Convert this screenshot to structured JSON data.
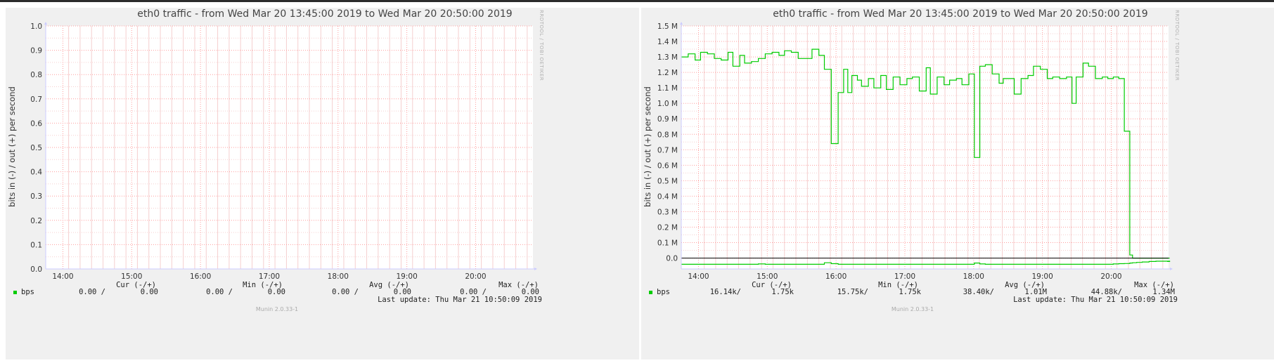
{
  "theme": {
    "panel_bg": "#f0f0f0",
    "plot_bg": "#ffffff",
    "grid_major": "#ff9e9e",
    "grid_minor": "#f5cfcf",
    "series_color": "#00cc00",
    "zero_line": "#000000",
    "text": "#333333"
  },
  "chart_data": [
    {
      "type": "line",
      "title": "eth0 traffic - from Wed Mar 20 13:45:00 2019 to Wed Mar 20 20:50:00 2019",
      "ylabel": "bits in (-) / out (+) per second",
      "xlabel": "",
      "ylim": [
        0,
        1.0
      ],
      "yticks": [
        {
          "v": 0.0,
          "label": "0.0"
        },
        {
          "v": 0.1,
          "label": "0.1"
        },
        {
          "v": 0.2,
          "label": "0.2"
        },
        {
          "v": 0.3,
          "label": "0.3"
        },
        {
          "v": 0.4,
          "label": "0.4"
        },
        {
          "v": 0.5,
          "label": "0.5"
        },
        {
          "v": 0.6,
          "label": "0.6"
        },
        {
          "v": 0.7,
          "label": "0.7"
        },
        {
          "v": 0.8,
          "label": "0.8"
        },
        {
          "v": 0.9,
          "label": "0.9"
        },
        {
          "v": 1.0,
          "label": "1.0"
        }
      ],
      "xticks": [
        "14:00",
        "15:00",
        "16:00",
        "17:00",
        "18:00",
        "19:00",
        "20:00"
      ],
      "grid": true,
      "series": [],
      "stats_header": {
        "cur": "Cur (-/+)",
        "min": "Min (-/+)",
        "avg": "Avg (-/+)",
        "max": "Max (-/+)"
      },
      "legend": {
        "name": "bps",
        "cur_in": "0.00 /",
        "cur_out": "0.00",
        "min_in": "0.00 /",
        "min_out": "0.00",
        "avg_in": "0.00 /",
        "avg_out": "0.00",
        "max_in": "0.00 /",
        "max_out": "0.00"
      },
      "last_update": "Last update:  Thu Mar 21 10:50:09 2019",
      "side_text": "RRDTOOL / TOBI OETIKER",
      "version": "Munin 2.0.33-1"
    },
    {
      "type": "line",
      "title": "eth0 traffic - from Wed Mar 20 13:45:00 2019 to Wed Mar 20 20:50:00 2019",
      "ylabel": "bits in (-) / out (+) per second",
      "xlabel": "",
      "ylim": [
        -0.07,
        1.5
      ],
      "yticks": [
        {
          "v": 0.0,
          "label": "0.0"
        },
        {
          "v": 0.1,
          "label": "0.1 M"
        },
        {
          "v": 0.2,
          "label": "0.2 M"
        },
        {
          "v": 0.3,
          "label": "0.3 M"
        },
        {
          "v": 0.4,
          "label": "0.4 M"
        },
        {
          "v": 0.5,
          "label": "0.5 M"
        },
        {
          "v": 0.6,
          "label": "0.6 M"
        },
        {
          "v": 0.7,
          "label": "0.7 M"
        },
        {
          "v": 0.8,
          "label": "0.8 M"
        },
        {
          "v": 0.9,
          "label": "0.9 M"
        },
        {
          "v": 1.0,
          "label": "1.0 M"
        },
        {
          "v": 1.1,
          "label": "1.1 M"
        },
        {
          "v": 1.2,
          "label": "1.2 M"
        },
        {
          "v": 1.3,
          "label": "1.3 M"
        },
        {
          "v": 1.4,
          "label": "1.4 M"
        },
        {
          "v": 1.5,
          "label": "1.5 M"
        }
      ],
      "xticks": [
        "14:00",
        "15:00",
        "16:00",
        "17:00",
        "18:00",
        "19:00",
        "20:00"
      ],
      "grid": true,
      "series": [
        {
          "name": "bps",
          "x_unit": "hours after 13:45",
          "t": [
            0.0,
            0.1,
            0.2,
            0.28,
            0.38,
            0.48,
            0.58,
            0.68,
            0.75,
            0.85,
            0.92,
            1.02,
            1.12,
            1.22,
            1.32,
            1.42,
            1.5,
            1.6,
            1.7,
            1.8,
            1.9,
            2.0,
            2.08,
            2.18,
            2.28,
            2.36,
            2.42,
            2.48,
            2.56,
            2.62,
            2.72,
            2.8,
            2.9,
            2.98,
            3.08,
            3.18,
            3.28,
            3.36,
            3.46,
            3.56,
            3.62,
            3.72,
            3.82,
            3.9,
            4.0,
            4.08,
            4.18,
            4.26,
            4.34,
            4.42,
            4.52,
            4.62,
            4.68,
            4.76,
            4.84,
            4.94,
            5.04,
            5.12,
            5.22,
            5.32,
            5.4,
            5.5,
            5.6,
            5.68,
            5.74,
            5.84,
            5.92,
            6.02,
            6.12,
            6.2,
            6.28,
            6.36,
            6.44,
            6.52,
            6.56,
            6.62,
            6.7,
            6.8,
            6.9,
            7.0,
            7.1
          ],
          "out": [
            1.3,
            1.32,
            1.28,
            1.33,
            1.32,
            1.29,
            1.28,
            1.33,
            1.24,
            1.31,
            1.26,
            1.27,
            1.29,
            1.32,
            1.33,
            1.31,
            1.34,
            1.33,
            1.29,
            1.29,
            1.35,
            1.31,
            1.22,
            0.74,
            1.07,
            1.22,
            1.07,
            1.18,
            1.15,
            1.11,
            1.16,
            1.1,
            1.18,
            1.09,
            1.17,
            1.12,
            1.16,
            1.17,
            1.08,
            1.23,
            1.06,
            1.17,
            1.12,
            1.15,
            1.16,
            1.12,
            1.19,
            0.65,
            1.24,
            1.25,
            1.19,
            1.13,
            1.16,
            1.16,
            1.06,
            1.16,
            1.18,
            1.24,
            1.22,
            1.16,
            1.17,
            1.16,
            1.17,
            1.0,
            1.17,
            1.26,
            1.24,
            1.16,
            1.17,
            1.16,
            1.17,
            1.16,
            0.82,
            0.02,
            0.0,
            0.0,
            0.0,
            0.0,
            0.0,
            0.0,
            0.0
          ],
          "in": [
            -0.04,
            -0.04,
            -0.04,
            -0.04,
            -0.04,
            -0.04,
            -0.04,
            -0.04,
            -0.04,
            -0.04,
            -0.04,
            -0.04,
            -0.038,
            -0.04,
            -0.04,
            -0.04,
            -0.04,
            -0.04,
            -0.04,
            -0.04,
            -0.04,
            -0.04,
            -0.03,
            -0.036,
            -0.04,
            -0.04,
            -0.04,
            -0.04,
            -0.04,
            -0.04,
            -0.04,
            -0.04,
            -0.04,
            -0.04,
            -0.04,
            -0.04,
            -0.04,
            -0.04,
            -0.04,
            -0.04,
            -0.04,
            -0.04,
            -0.04,
            -0.04,
            -0.04,
            -0.04,
            -0.04,
            -0.032,
            -0.038,
            -0.04,
            -0.04,
            -0.04,
            -0.04,
            -0.04,
            -0.04,
            -0.04,
            -0.04,
            -0.04,
            -0.04,
            -0.04,
            -0.04,
            -0.04,
            -0.04,
            -0.04,
            -0.04,
            -0.04,
            -0.04,
            -0.04,
            -0.04,
            -0.04,
            -0.038,
            -0.036,
            -0.035,
            -0.032,
            -0.03,
            -0.028,
            -0.025,
            -0.022,
            -0.02,
            -0.02,
            -0.022
          ]
        }
      ],
      "stats_header": {
        "cur": "Cur (-/+)",
        "min": "Min (-/+)",
        "avg": "Avg (-/+)",
        "max": "Max (-/+)"
      },
      "legend": {
        "name": "bps",
        "cur_in": "16.14k/",
        "cur_out": "1.75k",
        "min_in": "15.75k/",
        "min_out": "1.75k",
        "avg_in": "38.40k/",
        "avg_out": "1.01M",
        "max_in": "44.88k/",
        "max_out": "1.34M"
      },
      "last_update": "Last update:  Thu Mar 21 10:50:09 2019",
      "side_text": "RRDTOOL / TOBI OETIKER",
      "version": "Munin 2.0.33-1"
    }
  ]
}
